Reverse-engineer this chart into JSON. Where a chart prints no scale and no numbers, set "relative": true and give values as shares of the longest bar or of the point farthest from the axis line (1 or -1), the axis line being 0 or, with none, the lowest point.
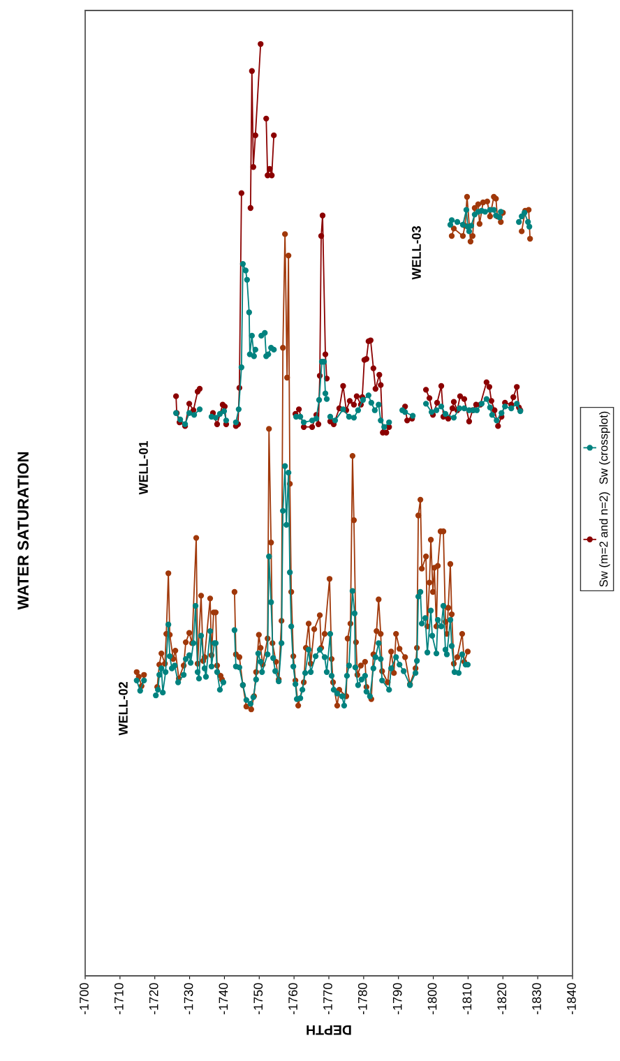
{
  "chart_data": {
    "type": "line",
    "title": "WATER SATURATION",
    "xlabel": "DEPTH",
    "relative": true,
    "xlim": [
      -1700,
      -1840
    ],
    "xticks": [
      -1700,
      -1710,
      -1720,
      -1730,
      -1740,
      -1750,
      -1760,
      -1770,
      -1780,
      -1790,
      -1800,
      -1810,
      -1820,
      -1830,
      -1840
    ],
    "tick_labels": "x",
    "marker": "circle",
    "line_style": "solid",
    "grid": false,
    "legend": "right",
    "annotations": [
      "WELL-02",
      "WELL-01",
      "WELL-03"
    ],
    "series": [
      {
        "color": "#a0380a",
        "x": [
          -1714.8,
          -1715.4,
          -1716.2,
          -1716.9,
          -1718.7,
          -1720.7,
          -1721.3,
          -1721.9,
          -1722.9,
          -1723.3,
          -1723.9,
          -1724.3,
          -1725.3,
          -1725.9,
          -1726.9,
          -1728.3,
          -1728.9,
          -1729.9,
          -1730.7,
          -1731.9,
          -1732.3,
          -1733.3,
          -1733.9,
          -1734.3,
          -1735.9,
          -1736.3,
          -1736.9,
          -1737.5,
          -1737.9,
          -1738.9,
          -1739.3,
          -1741.1,
          -1742.9,
          -1743.3,
          -1744.3,
          -1745.3,
          -1746.3,
          -1747.7,
          -1748.5,
          -1749.1,
          -1749.9,
          -1750.4,
          -1751.0,
          -1752.4,
          -1752.8,
          -1753.4,
          -1753.8,
          -1754.8,
          -1755.6,
          -1756.4,
          -1756.8,
          -1757.4,
          -1758.0,
          -1758.4,
          -1758.8,
          -1759.2,
          -1759.8,
          -1760.4,
          -1761.2,
          -1762.8,
          -1763.4,
          -1764.2,
          -1764.8,
          -1765.8,
          -1767.4,
          -1767.8,
          -1768.8,
          -1770.2,
          -1770.8,
          -1771.2,
          -1772.4,
          -1773.0,
          -1775.0,
          -1775.4,
          -1776.2,
          -1776.8,
          -1777.2,
          -1777.8,
          -1778.2,
          -1779.2,
          -1780.4,
          -1780.8,
          -1782.2,
          -1782.8,
          -1783.7,
          -1784.3,
          -1784.9,
          -1785.3,
          -1786.9,
          -1787.9,
          -1788.7,
          -1789.3,
          -1790.3,
          -1791.9,
          -1793.3,
          -1794.9,
          -1795.3,
          -1795.7,
          -1796.3,
          -1796.7,
          -1797.9,
          -1798.3,
          -1798.9,
          -1799.3,
          -1799.9,
          -1800.3,
          -1800.9,
          -1801.3,
          -1802.1,
          -1802.9,
          -1803.5,
          -1803.9,
          -1804.3,
          -1804.9,
          -1805.3,
          -1805.9,
          -1806.9,
          -1808.3,
          -1808.9,
          -1809.9
        ],
        "values": [
          0.326,
          0.321,
          0.311,
          0.323,
          null,
          0.31,
          0.334,
          0.346,
          0.335,
          0.367,
          0.432,
          0.366,
          0.34,
          0.349,
          0.319,
          0.333,
          0.358,
          0.368,
          0.357,
          0.47,
          0.335,
          0.408,
          0.338,
          0.342,
          0.405,
          0.344,
          0.39,
          0.39,
          0.333,
          0.322,
          0.318,
          null,
          0.412,
          0.345,
          0.342,
          0.312,
          0.289,
          0.286,
          0.3,
          0.326,
          0.366,
          0.352,
          0.334,
          0.362,
          0.587,
          0.465,
          0.357,
          0.337,
          0.318,
          0.381,
          0.674,
          0.796,
          0.642,
          0.773,
          0.528,
          0.412,
          0.343,
          0.317,
          0.29,
          0.315,
          0.352,
          0.378,
          0.335,
          0.372,
          0.387,
          0.352,
          0.367,
          0.426,
          0.34,
          0.315,
          0.29,
          0.307,
          0.3,
          0.362,
          0.378,
          0.558,
          0.489,
          0.358,
          0.323,
          0.333,
          0.337,
          0.31,
          0.297,
          0.345,
          0.37,
          0.404,
          0.367,
          0.327,
          0.315,
          0.348,
          0.325,
          0.367,
          0.351,
          0.342,
          0.313,
          0.33,
          0.352,
          0.494,
          0.511,
          0.437,
          0.45,
          0.375,
          0.422,
          0.468,
          0.412,
          0.438,
          0.375,
          0.44,
          0.477,
          0.477,
          0.38,
          0.367,
          0.395,
          0.442,
          0.388,
          0.335,
          0.342,
          0.367,
          0.337,
          0.348
        ]
      },
      {
        "color": "#00827f",
        "x": [
          -1714.8,
          -1715.8,
          -1716.9,
          -1718.7,
          -1720.3,
          -1720.9,
          -1721.3,
          -1721.9,
          -1722.3,
          -1723.1,
          -1723.9,
          -1724.3,
          -1724.9,
          -1725.7,
          -1726.7,
          -1728.3,
          -1728.9,
          -1729.9,
          -1730.3,
          -1731.1,
          -1731.7,
          -1732.3,
          -1732.7,
          -1733.3,
          -1734.3,
          -1734.7,
          -1735.9,
          -1736.3,
          -1737.1,
          -1737.5,
          -1737.9,
          -1738.7,
          -1739.7,
          -1741.1,
          -1742.9,
          -1743.3,
          -1744.3,
          -1745.3,
          -1746.3,
          -1747.5,
          -1748.3,
          -1749.1,
          -1749.7,
          -1750.4,
          -1750.8,
          -1752.4,
          -1752.8,
          -1753.4,
          -1754.0,
          -1754.6,
          -1755.6,
          -1756.4,
          -1756.8,
          -1757.4,
          -1757.8,
          -1758.4,
          -1758.8,
          -1759.2,
          -1759.8,
          -1760.4,
          -1760.8,
          -1761.8,
          -1762.4,
          -1763.2,
          -1764.2,
          -1764.8,
          -1766.2,
          -1767.4,
          -1768.8,
          -1769.4,
          -1770.4,
          -1770.8,
          -1771.4,
          -1772.4,
          -1773.8,
          -1774.4,
          -1775.2,
          -1775.8,
          -1776.8,
          -1777.4,
          -1777.6,
          -1778.4,
          -1779.4,
          -1780.4,
          -1780.8,
          -1781.8,
          -1782.8,
          -1783.4,
          -1784.3,
          -1784.9,
          -1785.3,
          -1787.3,
          -1787.9,
          -1789.3,
          -1790.3,
          -1791.5,
          -1793.3,
          -1794.9,
          -1795.3,
          -1795.7,
          -1796.3,
          -1796.7,
          -1797.7,
          -1798.3,
          -1799.3,
          -1799.7,
          -1800.9,
          -1801.3,
          -1802.3,
          -1802.9,
          -1803.5,
          -1803.9,
          -1804.9,
          -1805.3,
          -1806.1,
          -1807.3,
          -1808.3,
          -1809.3,
          -1809.9
        ],
        "values": [
          0.317,
          0.306,
          0.317,
          null,
          0.301,
          0.307,
          0.323,
          0.33,
          0.304,
          0.326,
          0.377,
          0.343,
          0.33,
          0.333,
          0.315,
          0.323,
          0.34,
          0.344,
          0.336,
          0.357,
          0.397,
          0.326,
          0.319,
          0.365,
          0.33,
          0.321,
          0.37,
          0.332,
          0.357,
          0.357,
          0.326,
          0.307,
          0.315,
          null,
          0.371,
          0.332,
          0.331,
          0.312,
          0.296,
          0.292,
          0.299,
          0.318,
          0.346,
          0.337,
          0.326,
          0.345,
          0.45,
          0.401,
          0.341,
          0.327,
          0.316,
          0.357,
          0.499,
          0.547,
          0.484,
          0.54,
          0.433,
          0.375,
          0.332,
          0.313,
          0.297,
          0.298,
          0.307,
          0.325,
          0.35,
          0.326,
          0.343,
          0.35,
          0.342,
          0.326,
          0.367,
          0.322,
          0.307,
          0.303,
          0.3,
          0.29,
          0.322,
          0.333,
          0.413,
          0.389,
          0.331,
          0.312,
          0.318,
          0.322,
          0.305,
          0.3,
          0.33,
          0.342,
          0.357,
          0.34,
          0.317,
          0.307,
          0.33,
          0.342,
          0.334,
          0.327,
          0.312,
          0.325,
          0.338,
          0.407,
          0.412,
          0.378,
          0.384,
          0.347,
          0.392,
          0.365,
          0.346,
          0.382,
          0.375,
          0.397,
          0.35,
          0.345,
          0.382,
          0.354,
          0.326,
          0.325,
          0.345,
          0.334,
          0.334
        ]
      },
      {
        "name": "Sw (m=2 and n=2)",
        "color": "#8b0000",
        "x": [
          -1726.1,
          -1726.3,
          -1727.1,
          -1728.7,
          -1729.9,
          -1731.1,
          -1732.3,
          -1732.9,
          -1734.7,
          -1736.7,
          -1737.9,
          -1739.5,
          -1740.1,
          -1740.5,
          -1741.9,
          -1743.3,
          -1743.9,
          -1744.3,
          -1744.9,
          -1745.7,
          -1747.5,
          -1747.9,
          -1748.3,
          -1748.9,
          -1750.4,
          -1751.2,
          -1752.0,
          -1752.4,
          -1753.0,
          -1753.6,
          -1754.2,
          -1756.8,
          -1760.4,
          -1761.4,
          -1762.8,
          -1765.2,
          -1766.4,
          -1767.0,
          -1767.4,
          -1767.8,
          -1768.2,
          -1769.0,
          -1769.4,
          -1769.8,
          -1770.4,
          -1771.4,
          -1773.0,
          -1774.1,
          -1775.0,
          -1776.0,
          -1777.2,
          -1778.0,
          -1779.2,
          -1779.6,
          -1780.2,
          -1780.8,
          -1781.4,
          -1782.0,
          -1782.8,
          -1783.4,
          -1784.5,
          -1784.9,
          -1785.5,
          -1786.5,
          -1787.3,
          -1789.5,
          -1791.9,
          -1792.5,
          -1793.9,
          -1795.9,
          -1797.9,
          -1798.9,
          -1799.9,
          -1801.1,
          -1802.3,
          -1802.9,
          -1804.3,
          -1805.5,
          -1805.9,
          -1806.9,
          -1807.7,
          -1808.9,
          -1810.3,
          -1811.3,
          -1812.3,
          -1813.5,
          -1815.3,
          -1816.1,
          -1816.7,
          -1817.6,
          -1818.6,
          -1819.6,
          -1820.6,
          -1822.4,
          -1823.0,
          -1824.0,
          -1824.6,
          -1825.0
        ],
        "values": [
          0.622,
          0.604,
          0.594,
          0.59,
          0.614,
          0.607,
          0.627,
          0.63,
          null,
          0.604,
          0.592,
          0.613,
          0.611,
          0.592,
          null,
          0.59,
          0.592,
          0.631,
          0.84,
          null,
          0.824,
          0.971,
          0.868,
          0.902,
          1.0,
          null,
          0.92,
          0.859,
          0.866,
          0.859,
          0.902,
          null,
          0.603,
          0.608,
          0.589,
          0.589,
          0.602,
          0.592,
          0.644,
          0.794,
          0.816,
          0.667,
          0.641,
          null,
          0.595,
          0.592,
          0.609,
          0.633,
          0.607,
          0.617,
          0.613,
          0.622,
          0.613,
          0.621,
          0.661,
          0.662,
          0.681,
          0.682,
          0.652,
          0.63,
          0.645,
          0.634,
          0.583,
          0.583,
          0.589,
          null,
          0.611,
          0.596,
          0.598,
          null,
          0.629,
          0.62,
          0.602,
          0.615,
          0.633,
          0.6,
          0.598,
          0.609,
          0.616,
          0.607,
          0.622,
          0.619,
          0.595,
          0.607,
          0.613,
          0.613,
          0.637,
          0.632,
          0.617,
          0.607,
          0.59,
          0.6,
          0.615,
          0.613,
          0.621,
          0.632,
          0.61,
          0.607
        ]
      },
      {
        "name": "Sw (crossplot)",
        "color": "#00827f",
        "x": [
          -1726.1,
          -1727.3,
          -1728.7,
          -1729.9,
          -1731.3,
          -1732.9,
          -1734.7,
          -1736.3,
          -1737.5,
          -1738.7,
          -1739.9,
          -1740.5,
          -1741.9,
          -1743.3,
          -1744.1,
          -1744.9,
          -1745.3,
          -1746.1,
          -1746.5,
          -1747.1,
          -1747.3,
          -1747.9,
          -1748.5,
          -1748.9,
          -1749.7,
          -1750.6,
          -1751.6,
          -1752.0,
          -1752.6,
          -1753.4,
          -1754.2,
          -1756.8,
          -1760.6,
          -1761.8,
          -1762.8,
          -1765.2,
          -1766.4,
          -1767.2,
          -1768.0,
          -1768.6,
          -1769.0,
          -1769.4,
          -1769.8,
          -1770.4,
          -1771.8,
          -1774.1,
          -1775.8,
          -1777.2,
          -1778.4,
          -1779.8,
          -1781.4,
          -1782.2,
          -1783.2,
          -1784.3,
          -1784.9,
          -1785.9,
          -1787.3,
          -1789.5,
          -1791.1,
          -1791.9,
          -1794.1,
          -1795.9,
          -1797.9,
          -1799.5,
          -1800.9,
          -1802.3,
          -1803.5,
          -1805.9,
          -1807.5,
          -1808.9,
          -1810.3,
          -1811.5,
          -1812.5,
          -1813.9,
          -1815.3,
          -1816.3,
          -1816.9,
          -1818.2,
          -1819.6,
          -1820.6,
          -1822.4,
          -1824.0,
          -1825.0
        ],
        "values": [
          0.604,
          0.597,
          0.592,
          0.604,
          0.602,
          0.608,
          null,
          0.6,
          0.599,
          0.603,
          0.606,
          0.596,
          null,
          0.594,
          0.608,
          0.653,
          0.764,
          0.757,
          0.747,
          0.712,
          0.667,
          0.687,
          0.665,
          0.672,
          null,
          0.687,
          0.69,
          0.665,
          0.667,
          0.674,
          0.672,
          null,
          0.6,
          0.6,
          0.594,
          0.596,
          0.598,
          0.618,
          0.659,
          0.659,
          0.625,
          0.619,
          null,
          0.6,
          0.596,
          0.608,
          0.6,
          0.599,
          0.607,
          0.618,
          0.623,
          0.615,
          0.607,
          0.613,
          0.596,
          0.589,
          0.594,
          null,
          0.607,
          0.605,
          0.601,
          null,
          0.614,
          0.605,
          0.607,
          0.611,
          0.603,
          0.599,
          0.609,
          0.609,
          0.607,
          0.607,
          0.607,
          0.614,
          0.619,
          0.61,
          0.602,
          0.596,
          0.604,
          0.611,
          0.609,
          0.614,
          0.606
        ]
      },
      {
        "color": "#a0380a",
        "x": [
          -1805.3,
          -1805.9,
          -1808.5,
          -1809.1,
          -1809.7,
          -1810.7,
          -1811.3,
          -1811.9,
          -1812.9,
          -1813.3,
          -1814.3,
          -1815.5,
          -1816.3,
          -1817.4,
          -1818.0,
          -1818.4,
          -1819.4,
          -1820.0,
          -1822.0,
          -1825.4,
          -1826.4,
          -1827.4,
          -1827.8
        ],
        "values": [
          0.794,
          0.802,
          0.794,
          0.805,
          0.836,
          0.788,
          0.794,
          0.824,
          0.828,
          0.807,
          0.83,
          0.831,
          0.815,
          0.836,
          0.834,
          0.815,
          0.809,
          0.819,
          null,
          0.799,
          0.821,
          0.822,
          0.791
        ]
      },
      {
        "color": "#00827f",
        "x": [
          -1804.9,
          -1805.3,
          -1806.9,
          -1808.5,
          -1809.5,
          -1809.9,
          -1810.3,
          -1810.9,
          -1811.9,
          -1812.9,
          -1813.9,
          -1814.9,
          -1816.3,
          -1817.4,
          -1818.0,
          -1819.0,
          -1819.4,
          -1822.0,
          -1824.6,
          -1825.4,
          -1826.2,
          -1827.2,
          -1827.6
        ],
        "values": [
          0.806,
          0.811,
          0.809,
          0.806,
          0.822,
          0.804,
          0.799,
          0.805,
          0.817,
          0.82,
          0.821,
          0.82,
          0.822,
          0.822,
          0.816,
          0.814,
          0.82,
          null,
          0.809,
          0.815,
          0.819,
          0.809,
          0.804
        ]
      }
    ]
  }
}
